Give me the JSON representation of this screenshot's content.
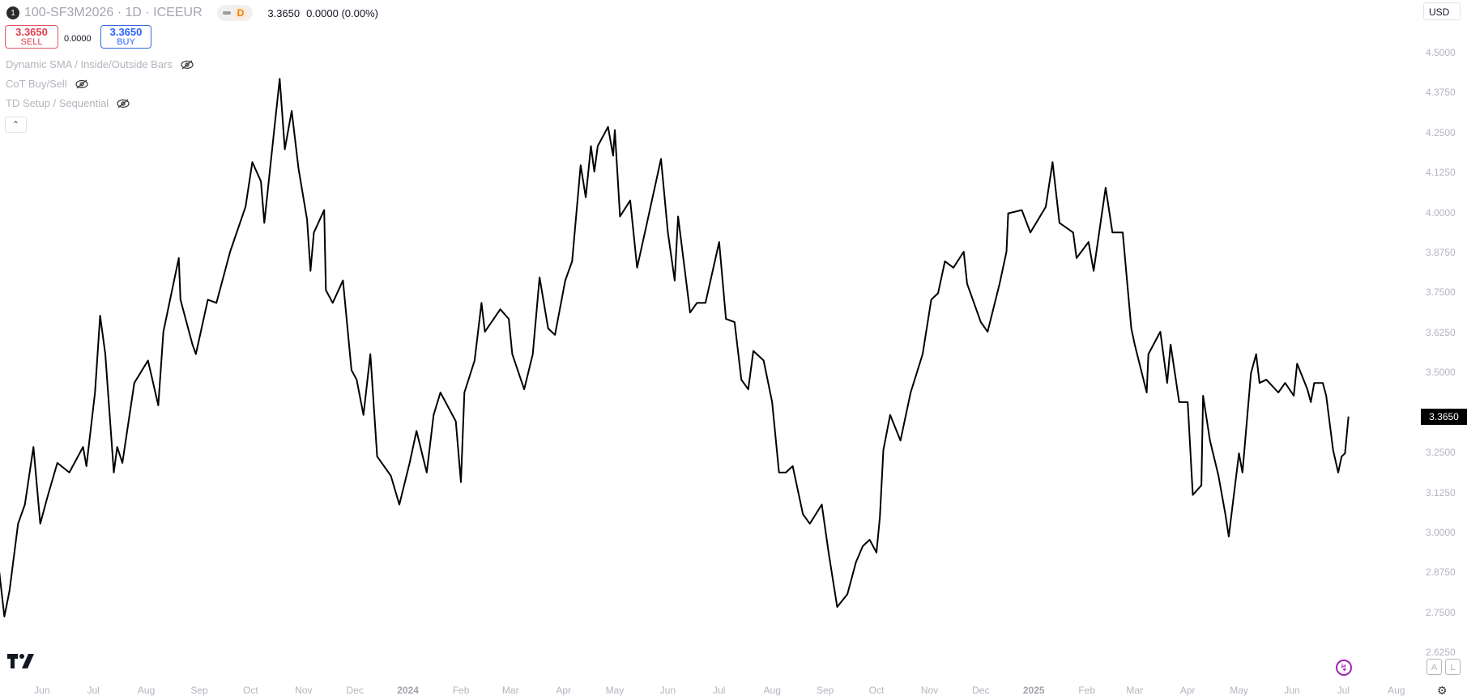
{
  "header": {
    "pane_number": "1",
    "symbol_title": "100-SF3M2026 · 1D · ICEEUR",
    "interval_badge": "D",
    "last_price": "3.3650",
    "change": "0.0000 (0.00%)"
  },
  "trade": {
    "sell_price": "3.3650",
    "sell_label": "SELL",
    "spread": "0.0000",
    "buy_price": "3.3650",
    "buy_label": "BUY"
  },
  "indicators": [
    {
      "label": "Dynamic SMA / Inside/Outside Bars",
      "icon": "eye-off-icon"
    },
    {
      "label": "CoT Buy/Sell",
      "icon": "eye-off-icon"
    },
    {
      "label": "TD Setup / Sequential",
      "icon": "eye-off-icon"
    }
  ],
  "currency": "USD",
  "price_axis": {
    "labels": [
      "4.5000",
      "4.3750",
      "4.2500",
      "4.1250",
      "4.0000",
      "3.8750",
      "3.7500",
      "3.6250",
      "3.5000",
      "3.2500",
      "3.1250",
      "3.0000",
      "2.8750",
      "2.7500",
      "2.6250"
    ],
    "last_price_label": "3.3650"
  },
  "axis_buttons": {
    "auto": "A",
    "log": "L"
  },
  "colors": {
    "line": "#000000",
    "sell": "#e04050",
    "buy": "#2962ff",
    "accent_purple": "#9c27b0",
    "last_price_bg": "#000000"
  },
  "chart_data": {
    "type": "line",
    "ylim": [
      2.6,
      4.55
    ],
    "x_ticks": [
      {
        "label": "Jun",
        "date": "2023-06-01"
      },
      {
        "label": "Jul",
        "date": "2023-07-01"
      },
      {
        "label": "Aug",
        "date": "2023-08-01"
      },
      {
        "label": "Sep",
        "date": "2023-09-01"
      },
      {
        "label": "Oct",
        "date": "2023-10-01"
      },
      {
        "label": "Nov",
        "date": "2023-11-01"
      },
      {
        "label": "Dec",
        "date": "2023-12-01"
      },
      {
        "label": "2024",
        "date": "2024-01-01",
        "year": true
      },
      {
        "label": "Feb",
        "date": "2024-02-01"
      },
      {
        "label": "Mar",
        "date": "2024-03-01"
      },
      {
        "label": "Apr",
        "date": "2024-04-01"
      },
      {
        "label": "May",
        "date": "2024-05-01"
      },
      {
        "label": "Jun",
        "date": "2024-06-01"
      },
      {
        "label": "Jul",
        "date": "2024-07-01"
      },
      {
        "label": "Aug",
        "date": "2024-08-01"
      },
      {
        "label": "Sep",
        "date": "2024-09-01"
      },
      {
        "label": "Oct",
        "date": "2024-10-01"
      },
      {
        "label": "Nov",
        "date": "2024-11-01"
      },
      {
        "label": "Dec",
        "date": "2024-12-01"
      },
      {
        "label": "2025",
        "date": "2025-01-01",
        "year": true
      },
      {
        "label": "Feb",
        "date": "2025-02-01"
      },
      {
        "label": "Mar",
        "date": "2025-03-01"
      },
      {
        "label": "Apr",
        "date": "2025-04-01"
      },
      {
        "label": "May",
        "date": "2025-05-01"
      },
      {
        "label": "Jun",
        "date": "2025-06-01"
      },
      {
        "label": "Jul",
        "date": "2025-07-01"
      },
      {
        "label": "Aug",
        "date": "2025-08-01"
      }
    ],
    "points": [
      [
        "2023-05-07",
        2.88
      ],
      [
        "2023-05-10",
        2.74
      ],
      [
        "2023-05-13",
        2.82
      ],
      [
        "2023-05-18",
        3.03
      ],
      [
        "2023-05-22",
        3.09
      ],
      [
        "2023-05-27",
        3.27
      ],
      [
        "2023-05-31",
        3.03
      ],
      [
        "2023-06-04",
        3.11
      ],
      [
        "2023-06-10",
        3.22
      ],
      [
        "2023-06-17",
        3.19
      ],
      [
        "2023-06-25",
        3.27
      ],
      [
        "2023-06-27",
        3.21
      ],
      [
        "2023-07-02",
        3.44
      ],
      [
        "2023-07-05",
        3.68
      ],
      [
        "2023-07-08",
        3.56
      ],
      [
        "2023-07-13",
        3.19
      ],
      [
        "2023-07-15",
        3.27
      ],
      [
        "2023-07-18",
        3.22
      ],
      [
        "2023-07-25",
        3.47
      ],
      [
        "2023-08-02",
        3.54
      ],
      [
        "2023-08-08",
        3.4
      ],
      [
        "2023-08-11",
        3.63
      ],
      [
        "2023-08-20",
        3.86
      ],
      [
        "2023-08-21",
        3.73
      ],
      [
        "2023-08-28",
        3.59
      ],
      [
        "2023-08-30",
        3.56
      ],
      [
        "2023-09-06",
        3.73
      ],
      [
        "2023-09-11",
        3.72
      ],
      [
        "2023-09-19",
        3.88
      ],
      [
        "2023-09-28",
        4.02
      ],
      [
        "2023-10-02",
        4.16
      ],
      [
        "2023-10-07",
        4.1
      ],
      [
        "2023-10-09",
        3.97
      ],
      [
        "2023-10-15",
        4.27
      ],
      [
        "2023-10-18",
        4.42
      ],
      [
        "2023-10-21",
        4.2
      ],
      [
        "2023-10-25",
        4.32
      ],
      [
        "2023-10-29",
        4.14
      ],
      [
        "2023-11-03",
        3.98
      ],
      [
        "2023-11-05",
        3.82
      ],
      [
        "2023-11-07",
        3.94
      ],
      [
        "2023-11-13",
        4.01
      ],
      [
        "2023-11-14",
        3.76
      ],
      [
        "2023-11-18",
        3.72
      ],
      [
        "2023-11-24",
        3.79
      ],
      [
        "2023-11-29",
        3.51
      ],
      [
        "2023-12-02",
        3.48
      ],
      [
        "2023-12-06",
        3.37
      ],
      [
        "2023-12-10",
        3.56
      ],
      [
        "2023-12-14",
        3.24
      ],
      [
        "2023-12-22",
        3.18
      ],
      [
        "2023-12-27",
        3.09
      ],
      [
        "2024-01-02",
        3.22
      ],
      [
        "2024-01-06",
        3.32
      ],
      [
        "2024-01-12",
        3.19
      ],
      [
        "2024-01-16",
        3.37
      ],
      [
        "2024-01-20",
        3.44
      ],
      [
        "2024-01-29",
        3.35
      ],
      [
        "2024-02-01",
        3.16
      ],
      [
        "2024-02-03",
        3.44
      ],
      [
        "2024-02-09",
        3.54
      ],
      [
        "2024-02-13",
        3.72
      ],
      [
        "2024-02-15",
        3.63
      ],
      [
        "2024-02-24",
        3.7
      ],
      [
        "2024-02-29",
        3.67
      ],
      [
        "2024-03-02",
        3.56
      ],
      [
        "2024-03-09",
        3.45
      ],
      [
        "2024-03-14",
        3.56
      ],
      [
        "2024-03-18",
        3.8
      ],
      [
        "2024-03-23",
        3.64
      ],
      [
        "2024-03-27",
        3.62
      ],
      [
        "2024-04-02",
        3.79
      ],
      [
        "2024-04-06",
        3.85
      ],
      [
        "2024-04-11",
        4.15
      ],
      [
        "2024-04-14",
        4.05
      ],
      [
        "2024-04-17",
        4.21
      ],
      [
        "2024-04-19",
        4.13
      ],
      [
        "2024-04-21",
        4.21
      ],
      [
        "2024-04-27",
        4.27
      ],
      [
        "2024-04-30",
        4.18
      ],
      [
        "2024-05-01",
        4.26
      ],
      [
        "2024-05-04",
        3.99
      ],
      [
        "2024-05-10",
        4.04
      ],
      [
        "2024-05-14",
        3.83
      ],
      [
        "2024-05-19",
        3.95
      ],
      [
        "2024-05-28",
        4.17
      ],
      [
        "2024-06-01",
        3.94
      ],
      [
        "2024-06-05",
        3.79
      ],
      [
        "2024-06-07",
        3.99
      ],
      [
        "2024-06-14",
        3.69
      ],
      [
        "2024-06-18",
        3.72
      ],
      [
        "2024-06-23",
        3.72
      ],
      [
        "2024-07-01",
        3.91
      ],
      [
        "2024-07-05",
        3.67
      ],
      [
        "2024-07-10",
        3.66
      ],
      [
        "2024-07-14",
        3.48
      ],
      [
        "2024-07-18",
        3.45
      ],
      [
        "2024-07-21",
        3.57
      ],
      [
        "2024-07-27",
        3.54
      ],
      [
        "2024-08-01",
        3.41
      ],
      [
        "2024-08-05",
        3.19
      ],
      [
        "2024-08-09",
        3.19
      ],
      [
        "2024-08-13",
        3.21
      ],
      [
        "2024-08-19",
        3.06
      ],
      [
        "2024-08-23",
        3.03
      ],
      [
        "2024-08-30",
        3.09
      ],
      [
        "2024-09-03",
        2.94
      ],
      [
        "2024-09-08",
        2.77
      ],
      [
        "2024-09-14",
        2.81
      ],
      [
        "2024-09-19",
        2.91
      ],
      [
        "2024-09-23",
        2.96
      ],
      [
        "2024-09-27",
        2.98
      ],
      [
        "2024-10-01",
        2.94
      ],
      [
        "2024-10-03",
        3.05
      ],
      [
        "2024-10-05",
        3.26
      ],
      [
        "2024-10-09",
        3.37
      ],
      [
        "2024-10-15",
        3.29
      ],
      [
        "2024-10-21",
        3.44
      ],
      [
        "2024-10-28",
        3.56
      ],
      [
        "2024-11-02",
        3.73
      ],
      [
        "2024-11-06",
        3.75
      ],
      [
        "2024-11-10",
        3.85
      ],
      [
        "2024-11-15",
        3.83
      ],
      [
        "2024-11-21",
        3.88
      ],
      [
        "2024-11-23",
        3.78
      ],
      [
        "2024-12-01",
        3.66
      ],
      [
        "2024-12-05",
        3.63
      ],
      [
        "2024-12-12",
        3.78
      ],
      [
        "2024-12-16",
        3.88
      ],
      [
        "2024-12-17",
        4.0
      ],
      [
        "2024-12-25",
        4.01
      ],
      [
        "2024-12-30",
        3.94
      ],
      [
        "2025-01-08",
        4.02
      ],
      [
        "2025-01-12",
        4.16
      ],
      [
        "2025-01-16",
        3.97
      ],
      [
        "2025-01-24",
        3.94
      ],
      [
        "2025-01-26",
        3.86
      ],
      [
        "2025-02-02",
        3.91
      ],
      [
        "2025-02-05",
        3.82
      ],
      [
        "2025-02-12",
        4.08
      ],
      [
        "2025-02-16",
        3.94
      ],
      [
        "2025-02-22",
        3.94
      ],
      [
        "2025-02-27",
        3.64
      ],
      [
        "2025-03-01",
        3.59
      ],
      [
        "2025-03-08",
        3.44
      ],
      [
        "2025-03-09",
        3.56
      ],
      [
        "2025-03-16",
        3.63
      ],
      [
        "2025-03-20",
        3.47
      ],
      [
        "2025-03-22",
        3.59
      ],
      [
        "2025-03-27",
        3.41
      ],
      [
        "2025-04-01",
        3.41
      ],
      [
        "2025-04-04",
        3.12
      ],
      [
        "2025-04-09",
        3.15
      ],
      [
        "2025-04-10",
        3.43
      ],
      [
        "2025-04-14",
        3.29
      ],
      [
        "2025-04-19",
        3.18
      ],
      [
        "2025-04-23",
        3.06
      ],
      [
        "2025-04-25",
        2.99
      ],
      [
        "2025-05-01",
        3.25
      ],
      [
        "2025-05-03",
        3.19
      ],
      [
        "2025-05-08",
        3.5
      ],
      [
        "2025-05-11",
        3.56
      ],
      [
        "2025-05-13",
        3.47
      ],
      [
        "2025-05-17",
        3.48
      ],
      [
        "2025-05-24",
        3.44
      ],
      [
        "2025-05-28",
        3.47
      ],
      [
        "2025-06-02",
        3.43
      ],
      [
        "2025-06-04",
        3.53
      ],
      [
        "2025-06-10",
        3.45
      ],
      [
        "2025-06-12",
        3.41
      ],
      [
        "2025-06-14",
        3.47
      ],
      [
        "2025-06-19",
        3.47
      ],
      [
        "2025-06-21",
        3.43
      ],
      [
        "2025-06-25",
        3.26
      ],
      [
        "2025-06-28",
        3.19
      ],
      [
        "2025-06-30",
        3.24
      ],
      [
        "2025-07-02",
        3.25
      ],
      [
        "2025-07-04",
        3.365
      ]
    ]
  }
}
